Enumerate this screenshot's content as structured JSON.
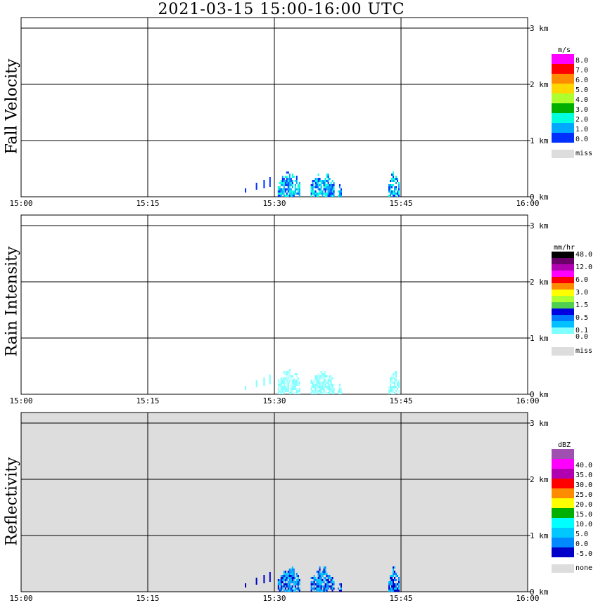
{
  "title": "2021-03-15  15:00-16:00 UTC",
  "time_ticks": [
    "15:00",
    "15:15",
    "15:30",
    "15:45",
    "16:00"
  ],
  "height_ticks": [
    "0 km",
    "1 km",
    "2 km",
    "3 km"
  ],
  "panels": [
    {
      "label": "Fall Velocity",
      "unit": "m/s",
      "legend": [
        {
          "value": "8.0",
          "color": "#ff00ff"
        },
        {
          "value": "7.0",
          "color": "#ff0000"
        },
        {
          "value": "6.0",
          "color": "#ff8c00"
        },
        {
          "value": "5.0",
          "color": "#ffd700"
        },
        {
          "value": "4.0",
          "color": "#adff2f"
        },
        {
          "value": "3.0",
          "color": "#00b000"
        },
        {
          "value": "2.0",
          "color": "#00ffdd"
        },
        {
          "value": "1.0",
          "color": "#00a8ff"
        },
        {
          "value": "0.0",
          "color": "#0030ff"
        }
      ],
      "miss_label": "miss"
    },
    {
      "label": "Rain Intensity",
      "unit": "mm/hr",
      "legend": [
        {
          "value": "48.0",
          "color": "#000000"
        },
        {
          "value": "",
          "color": "#6b006b"
        },
        {
          "value": "12.0",
          "color": "#b000b0"
        },
        {
          "value": "",
          "color": "#ff00ff"
        },
        {
          "value": "6.0",
          "color": "#ff0000"
        },
        {
          "value": "",
          "color": "#ff8c00"
        },
        {
          "value": "3.0",
          "color": "#ffff00"
        },
        {
          "value": "",
          "color": "#adff2f"
        },
        {
          "value": "1.5",
          "color": "#50d050"
        },
        {
          "value": "",
          "color": "#0000e0"
        },
        {
          "value": "0.5",
          "color": "#0078ff"
        },
        {
          "value": "",
          "color": "#00c0ff"
        },
        {
          "value": "0.1",
          "color": "#80ffff"
        },
        {
          "value": "0.0",
          "color": "#ffffff"
        }
      ],
      "miss_label": "miss"
    },
    {
      "label": "Reflectivity",
      "unit": "dBZ",
      "legend": [
        {
          "value": "",
          "color": "#a050b0"
        },
        {
          "value": "40.0",
          "color": "#ff00ff"
        },
        {
          "value": "35.0",
          "color": "#b000b0"
        },
        {
          "value": "30.0",
          "color": "#ff0000"
        },
        {
          "value": "25.0",
          "color": "#ff8c00"
        },
        {
          "value": "20.0",
          "color": "#ffff00"
        },
        {
          "value": "15.0",
          "color": "#00b000"
        },
        {
          "value": "10.0",
          "color": "#00ffff"
        },
        {
          "value": "5.0",
          "color": "#00c8ff"
        },
        {
          "value": "0.0",
          "color": "#0088ff"
        },
        {
          "value": "-5.0",
          "color": "#0000c8"
        }
      ],
      "miss_label": "none"
    }
  ],
  "chart_data": [
    {
      "type": "heatmap",
      "title": "Fall Velocity",
      "xlabel": "",
      "ylabel": "",
      "x_range": [
        "15:00",
        "16:00"
      ],
      "y_range_km": [
        0,
        3.5
      ],
      "legend_unit": "m/s",
      "grid": true,
      "echo_cells": [
        {
          "t": 30.4,
          "h": 0.45,
          "dur": 2.6,
          "v": 1.5
        },
        {
          "t": 34.3,
          "h": 0.45,
          "dur": 2.7,
          "v": 1.0
        },
        {
          "t": 37.5,
          "h": 0.2,
          "dur": 0.4,
          "v": 0.5
        },
        {
          "t": 43.5,
          "h": 0.45,
          "dur": 1.2,
          "v": 1.5
        }
      ]
    },
    {
      "type": "heatmap",
      "title": "Rain Intensity",
      "xlabel": "",
      "ylabel": "",
      "x_range": [
        "15:00",
        "16:00"
      ],
      "y_range_km": [
        0,
        3.5
      ],
      "legend_unit": "mm/hr",
      "grid": true,
      "echo_cells": [
        {
          "t": 30.4,
          "h": 0.45,
          "dur": 2.6,
          "v": 0.1
        },
        {
          "t": 34.3,
          "h": 0.45,
          "dur": 2.7,
          "v": 0.1
        },
        {
          "t": 37.5,
          "h": 0.2,
          "dur": 0.4,
          "v": 0.1
        },
        {
          "t": 43.5,
          "h": 0.45,
          "dur": 1.2,
          "v": 0.1
        }
      ]
    },
    {
      "type": "heatmap",
      "title": "Reflectivity",
      "xlabel": "",
      "ylabel": "",
      "x_range": [
        "15:00",
        "16:00"
      ],
      "y_range_km": [
        0,
        3.5
      ],
      "legend_unit": "dBZ",
      "grid": true,
      "echo_cells": [
        {
          "t": 30.4,
          "h": 0.45,
          "dur": 2.6,
          "v": 5.0
        },
        {
          "t": 34.3,
          "h": 0.45,
          "dur": 2.7,
          "v": 5.0
        },
        {
          "t": 37.5,
          "h": 0.2,
          "dur": 0.4,
          "v": 0.0
        },
        {
          "t": 43.5,
          "h": 0.45,
          "dur": 1.2,
          "v": 0.0
        }
      ]
    }
  ]
}
